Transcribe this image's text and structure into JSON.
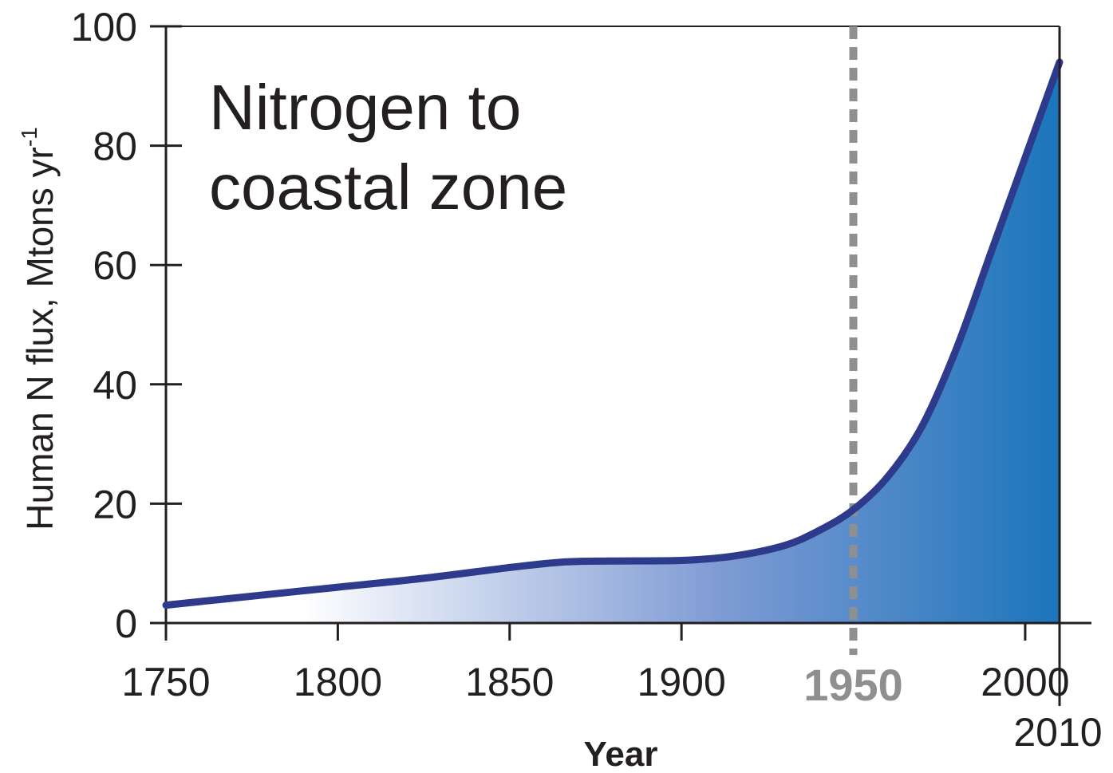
{
  "chart_data": {
    "type": "area",
    "title": "",
    "annotation_lines": [
      "Nitrogen to",
      "coastal zone"
    ],
    "xlabel": "Year",
    "ylabel": "Human N flux, Mtons yr",
    "ylabel_superscript": "-1",
    "xlim": [
      1750,
      2010
    ],
    "ylim": [
      0,
      100
    ],
    "x_ticks": [
      1750,
      1800,
      1850,
      1900,
      2000
    ],
    "x_tick_labels": [
      "1750",
      "1800",
      "1850",
      "1900",
      "2000"
    ],
    "x_end_tick": 2010,
    "x_end_tick_label": "2010",
    "y_ticks": [
      0,
      20,
      40,
      60,
      80,
      100
    ],
    "y_tick_labels": [
      "0",
      "20",
      "40",
      "60",
      "80",
      "100"
    ],
    "highlight_year": 1950,
    "highlight_label": "1950",
    "grid": false,
    "series": [
      {
        "x": [
          1750,
          1775,
          1800,
          1825,
          1850,
          1865,
          1880,
          1900,
          1915,
          1930,
          1940,
          1950,
          1960,
          1970,
          1980,
          1990,
          2000,
          2010
        ],
        "y": [
          3,
          4.5,
          6,
          7.5,
          9.3,
          10.2,
          10.4,
          10.5,
          11.2,
          13,
          15.5,
          19,
          24.5,
          33,
          46,
          62,
          78,
          94
        ]
      }
    ],
    "colors": {
      "line": "#2e3a8c",
      "fill_start": "#ffffff",
      "fill_mid": "#7f9bd4",
      "fill_end": "#1b75bb",
      "highlight": "#8e8f91",
      "axis": "#231f20"
    }
  }
}
